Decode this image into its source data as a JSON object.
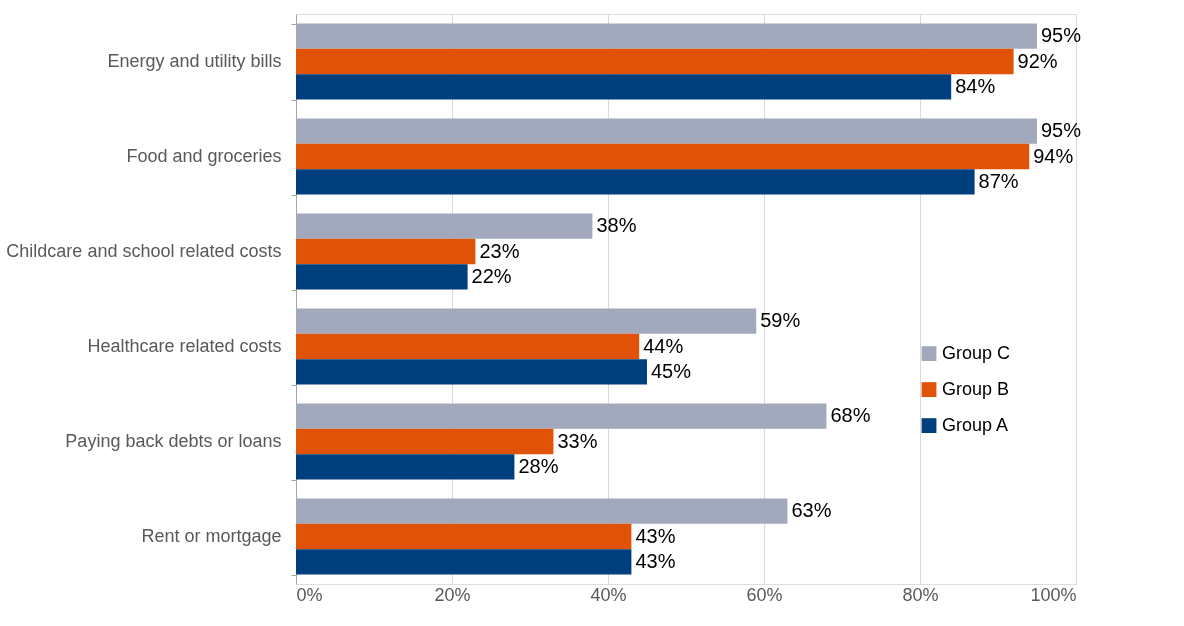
{
  "chart_data": {
    "type": "bar",
    "orientation": "horizontal",
    "categories": [
      "Energy and utility bills",
      "Food and groceries",
      "Childcare and school related costs",
      "Healthcare related costs",
      "Paying back debts or loans",
      "Rent or mortgage"
    ],
    "series": [
      {
        "name": "Group C",
        "color": "#a2a9bc",
        "values": [
          95,
          95,
          38,
          59,
          68,
          63
        ],
        "value_labels": [
          "95%",
          "95%",
          "38%",
          "59%",
          "68%",
          "63%"
        ]
      },
      {
        "name": "Group B",
        "color": "#e05206",
        "values": [
          92,
          94,
          23,
          44,
          33,
          43
        ],
        "value_labels": [
          "92%",
          "94%",
          "23%",
          "44%",
          "33%",
          "43%"
        ]
      },
      {
        "name": "Group A",
        "color": "#003f7d",
        "values": [
          84,
          87,
          22,
          45,
          28,
          43
        ],
        "value_labels": [
          "84%",
          "87%",
          "22%",
          "45%",
          "28%",
          "43%"
        ]
      }
    ],
    "xlim": [
      0,
      100
    ],
    "xticks": [
      {
        "value": 0,
        "label": "0%"
      },
      {
        "value": 20,
        "label": "20%"
      },
      {
        "value": 40,
        "label": "40%"
      },
      {
        "value": 60,
        "label": "60%"
      },
      {
        "value": 80,
        "label": "80%"
      },
      {
        "value": 100,
        "label": "100%"
      }
    ],
    "grid": "x",
    "legend": "right"
  }
}
